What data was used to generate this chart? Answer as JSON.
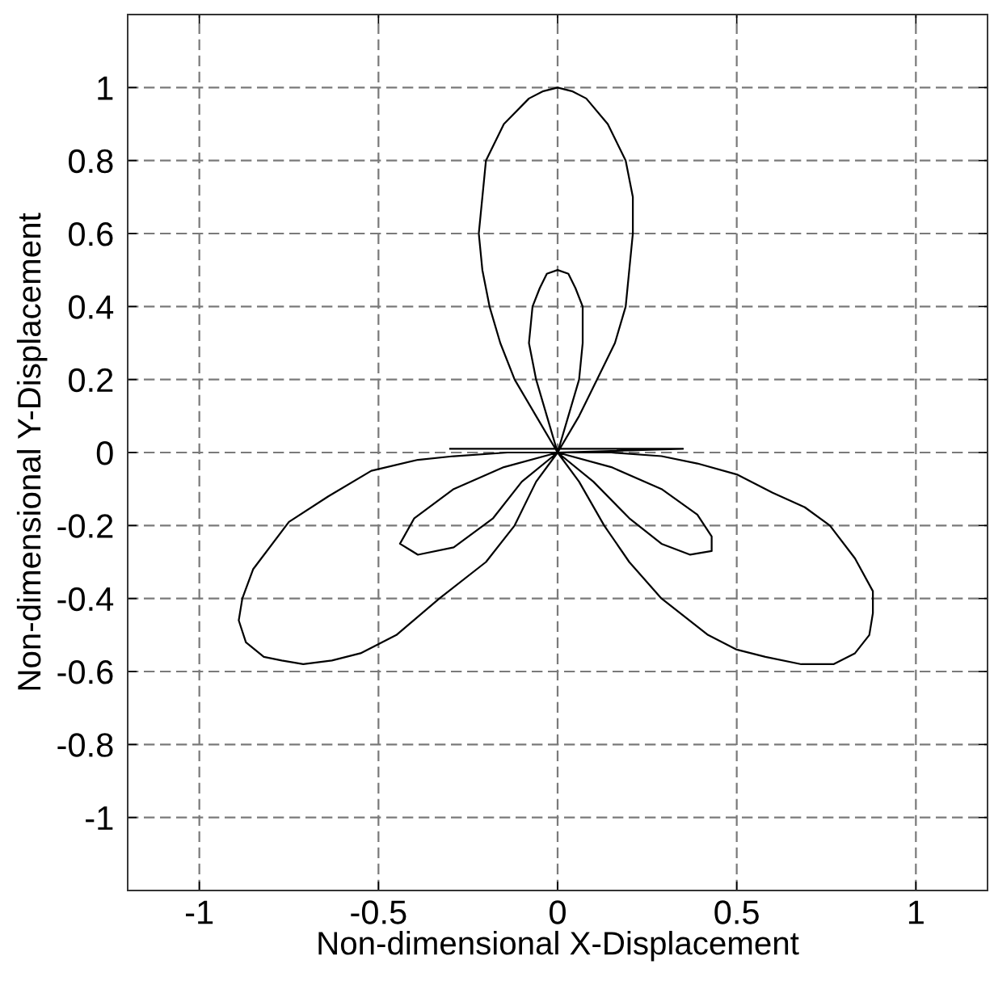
{
  "chart_data": {
    "type": "line",
    "xlabel": "Non-dimensional X-Displacement",
    "ylabel": "Non-dimensional Y-Displacement",
    "xlim": [
      -1.2,
      1.2
    ],
    "ylim": [
      -1.2,
      1.2
    ],
    "xticks": [
      -1,
      -0.5,
      0,
      0.5,
      1
    ],
    "yticks": [
      -1,
      -0.8,
      -0.6,
      -0.4,
      -0.2,
      0,
      0.2,
      0.4,
      0.6,
      0.8,
      1
    ],
    "grid": true,
    "line_style": "solid",
    "series": [
      {
        "color": "#000000",
        "x": [
          0,
          0.06,
          0.11,
          0.16,
          0.19,
          0.2,
          0.21,
          0.21,
          0.19,
          0.14,
          0.08,
          0.04,
          0,
          -0.04,
          -0.08,
          -0.15,
          -0.2,
          -0.21,
          -0.22,
          -0.21,
          -0.19,
          -0.16,
          -0.12,
          -0.06,
          0,
          0.03,
          0.06,
          0.07,
          0.07,
          0.05,
          0.03,
          0,
          -0.03,
          -0.05,
          -0.07,
          -0.08,
          -0.06,
          -0.03,
          0,
          -0.06,
          -0.12,
          -0.2,
          -0.33,
          -0.45,
          -0.55,
          -0.63,
          -0.71,
          -0.77,
          -0.82,
          -0.87,
          -0.89,
          -0.88,
          -0.85,
          -0.75,
          -0.64,
          -0.52,
          -0.39,
          -0.29,
          -0.14,
          0,
          0.06,
          0.13,
          0.2,
          0.29,
          0.42,
          0.5,
          0.58,
          0.68,
          0.77,
          0.83,
          0.87,
          0.88,
          0.88,
          0.83,
          0.76,
          0.69,
          0.6,
          0.5,
          0.39,
          0.29,
          0.15,
          0,
          0.15,
          0.29,
          0.39,
          0.43,
          0.43,
          0.37,
          0.29,
          0.2,
          0.1,
          0,
          -0.1,
          -0.18,
          -0.29,
          -0.39,
          -0.44,
          -0.4,
          -0.29,
          -0.15,
          0,
          0.35,
          -0.3
        ],
        "values": [
          0,
          0.1,
          0.2,
          0.3,
          0.4,
          0.5,
          0.6,
          0.7,
          0.8,
          0.9,
          0.97,
          0.99,
          1,
          0.99,
          0.97,
          0.9,
          0.8,
          0.7,
          0.6,
          0.5,
          0.4,
          0.3,
          0.2,
          0.1,
          0,
          0.1,
          0.2,
          0.3,
          0.4,
          0.45,
          0.49,
          0.5,
          0.49,
          0.45,
          0.4,
          0.3,
          0.2,
          0.1,
          0,
          -0.08,
          -0.2,
          -0.3,
          -0.4,
          -0.5,
          -0.55,
          -0.57,
          -0.58,
          -0.57,
          -0.56,
          -0.52,
          -0.46,
          -0.4,
          -0.32,
          -0.19,
          -0.12,
          -0.05,
          -0.02,
          -0.01,
          0,
          0,
          -0.08,
          -0.2,
          -0.3,
          -0.4,
          -0.5,
          -0.54,
          -0.56,
          -0.58,
          -0.58,
          -0.55,
          -0.5,
          -0.44,
          -0.38,
          -0.29,
          -0.2,
          -0.15,
          -0.11,
          -0.06,
          -0.03,
          -0.01,
          0,
          0,
          -0.04,
          -0.1,
          -0.17,
          -0.23,
          -0.27,
          -0.28,
          -0.25,
          -0.18,
          -0.08,
          0,
          -0.08,
          -0.18,
          -0.26,
          -0.28,
          -0.25,
          -0.18,
          -0.1,
          -0.04,
          0,
          0.01,
          0.01
        ]
      }
    ]
  }
}
